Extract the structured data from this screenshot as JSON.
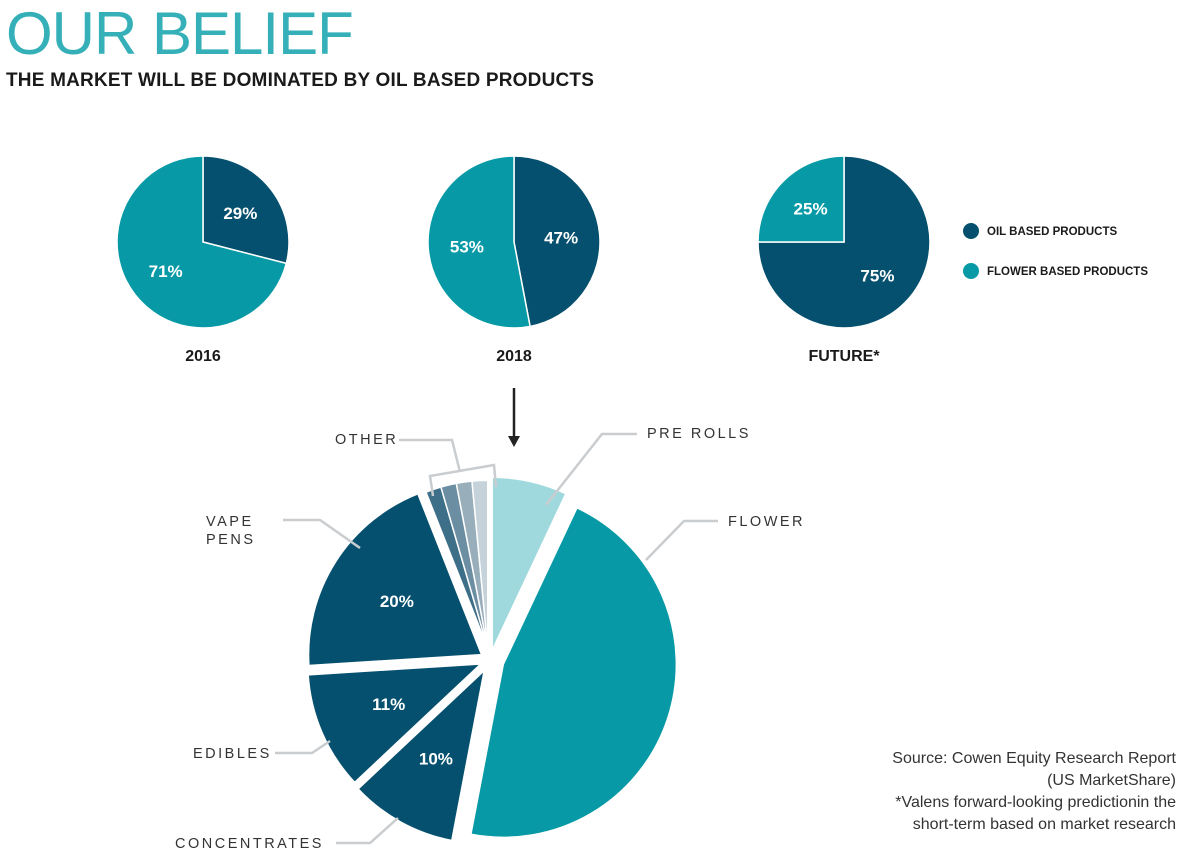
{
  "header": {
    "title": "OUR BELIEF",
    "subtitle": "THE MARKET WILL BE DOMINATED BY OIL BASED PRODUCTS"
  },
  "colors": {
    "oil": "#05506e",
    "flower": "#079aa6",
    "pre_rolls": "#9fd9dd",
    "other_1": "#3d6f88",
    "other_2": "#6b8ea2",
    "other_3": "#98aebb",
    "other_4": "#c5d2da",
    "leader": "#c9cdd0",
    "arrow": "#222222"
  },
  "legend": [
    {
      "label": "OIL BASED PRODUCTS",
      "color": "#05506e"
    },
    {
      "label": "FLOWER BASED PRODUCTS",
      "color": "#079aa6"
    }
  ],
  "chart_data": [
    {
      "type": "pie",
      "title": "2016",
      "slices": [
        {
          "name": "Oil based products",
          "value": 29,
          "label": "29%"
        },
        {
          "name": "Flower based products",
          "value": 71,
          "label": "71%"
        }
      ]
    },
    {
      "type": "pie",
      "title": "2018",
      "slices": [
        {
          "name": "Oil based products",
          "value": 47,
          "label": "47%"
        },
        {
          "name": "Flower based products",
          "value": 53,
          "label": "53%"
        }
      ]
    },
    {
      "type": "pie",
      "title": "FUTURE*",
      "slices": [
        {
          "name": "Oil based products",
          "value": 75,
          "label": "75%"
        },
        {
          "name": "Flower based products",
          "value": 25,
          "label": "25%"
        }
      ]
    },
    {
      "type": "pie",
      "title": "",
      "slices": [
        {
          "name": "PRE ROLLS",
          "value": 7,
          "label": ""
        },
        {
          "name": "FLOWER",
          "value": 46,
          "label": ""
        },
        {
          "name": "CONCENTRATES",
          "value": 10,
          "label": "10%"
        },
        {
          "name": "EDIBLES",
          "value": 11,
          "label": "11%"
        },
        {
          "name": "VAPE PENS",
          "value": 20,
          "label": "20%"
        },
        {
          "name": "OTHER",
          "value": 6,
          "label": ""
        }
      ],
      "category_labels": [
        "PRE ROLLS",
        "FLOWER",
        "CONCENTRATES",
        "EDIBLES",
        "VAPE PENS",
        "OTHER"
      ]
    }
  ],
  "source": {
    "line1": "Source: Cowen Equity Research Report",
    "line2": "(US MarketShare)",
    "line3": "*Valens forward-looking predictionin the",
    "line4": "short-term based on market research"
  }
}
